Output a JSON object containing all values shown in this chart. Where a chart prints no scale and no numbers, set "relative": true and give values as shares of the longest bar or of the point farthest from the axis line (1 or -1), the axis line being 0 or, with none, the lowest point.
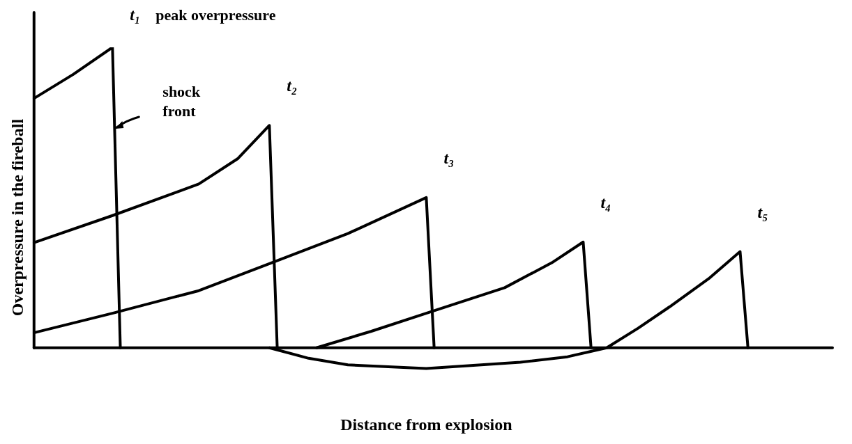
{
  "chart_data": {
    "type": "line",
    "xlabel": "Distance from explosion",
    "ylabel": "Overpressure in the fireball",
    "relative": true,
    "tick_labels": false,
    "marker": "none",
    "line_style": "solid",
    "categories": [
      null,
      null,
      null,
      null,
      null,
      null,
      null,
      null,
      null,
      null,
      null,
      null,
      null,
      null,
      null,
      null,
      null,
      null,
      null,
      null,
      null,
      null,
      null,
      null,
      null,
      null,
      null,
      null,
      null,
      null,
      null,
      null,
      null,
      null,
      null,
      null,
      null,
      null,
      null,
      null,
      null,
      null,
      null,
      null,
      null,
      null,
      null,
      null,
      null,
      null,
      null,
      null,
      null,
      null,
      null,
      null,
      null,
      null,
      null,
      null,
      null,
      null,
      null,
      null,
      null,
      null,
      null,
      null,
      null,
      null,
      null,
      null,
      null,
      null,
      null,
      null,
      null,
      null,
      null,
      null,
      null,
      null,
      null,
      null,
      null,
      null,
      null,
      null,
      null,
      null,
      null,
      null,
      null,
      null,
      null,
      null,
      null,
      null,
      null,
      null,
      null
    ],
    "series": [
      {
        "name": "t₁",
        "color": "#000000",
        "values": [
          0.83,
          null,
          null,
          null,
          null,
          0.91,
          null,
          null,
          null,
          null,
          1.0,
          0,
          null,
          null,
          null,
          null,
          null,
          null,
          null,
          null,
          null,
          null,
          null,
          null,
          null,
          null,
          null,
          null,
          null,
          null,
          null,
          null,
          null,
          null,
          null,
          null,
          null,
          null,
          null,
          null,
          null,
          null,
          null,
          null,
          null,
          null,
          null,
          null,
          null,
          null,
          null,
          null,
          null,
          null,
          null,
          null,
          null,
          null,
          null,
          null,
          null,
          null,
          null,
          null,
          null,
          null,
          null,
          null,
          null,
          null,
          null,
          null,
          null,
          null,
          null,
          null,
          null,
          null,
          null,
          null,
          null,
          null,
          null,
          null,
          null,
          null,
          null,
          null,
          null,
          null,
          null,
          null,
          null,
          null,
          null,
          null,
          null,
          null,
          null,
          null,
          null
        ]
      },
      {
        "name": "t₂",
        "color": "#000000",
        "values": [
          0.35,
          null,
          null,
          null,
          null,
          null,
          null,
          null,
          null,
          null,
          0.44,
          null,
          null,
          null,
          null,
          null,
          null,
          null,
          null,
          null,
          null,
          0.545,
          null,
          null,
          null,
          null,
          0.63,
          null,
          null,
          null,
          0.74,
          0,
          null,
          null,
          null,
          null,
          null,
          null,
          null,
          null,
          null,
          null,
          null,
          null,
          null,
          null,
          null,
          null,
          null,
          null,
          null,
          null,
          null,
          null,
          null,
          null,
          null,
          null,
          null,
          null,
          null,
          null,
          null,
          null,
          null,
          null,
          null,
          null,
          null,
          null,
          null,
          null,
          null,
          null,
          null,
          null,
          null,
          null,
          null,
          null,
          null,
          null,
          null,
          null,
          null,
          null,
          null,
          null,
          null,
          null,
          null,
          null,
          null,
          null,
          null,
          null,
          null,
          null,
          null,
          null,
          null
        ]
      },
      {
        "name": "t₃",
        "color": "#000000",
        "values": [
          0.05,
          null,
          null,
          null,
          null,
          null,
          null,
          null,
          null,
          null,
          0.115,
          null,
          null,
          null,
          null,
          null,
          null,
          null,
          null,
          null,
          null,
          0.19,
          null,
          null,
          null,
          null,
          null,
          null,
          null,
          null,
          0.28,
          null,
          null,
          null,
          null,
          null,
          null,
          null,
          null,
          null,
          0.38,
          null,
          null,
          null,
          null,
          null,
          null,
          null,
          null,
          null,
          0.5,
          0,
          null,
          null,
          null,
          null,
          null,
          null,
          null,
          null,
          null,
          null,
          null,
          null,
          null,
          null,
          null,
          null,
          null,
          null,
          null,
          null,
          null,
          null,
          null,
          null,
          null,
          null,
          null,
          null,
          null,
          null,
          null,
          null,
          null,
          null,
          null,
          null,
          null,
          null,
          null,
          null,
          null,
          null,
          null,
          null,
          null,
          null,
          null,
          null,
          null
        ]
      },
      {
        "name": "t₄",
        "color": "#000000",
        "values": [
          null,
          null,
          null,
          null,
          null,
          null,
          null,
          null,
          null,
          null,
          null,
          null,
          null,
          null,
          null,
          null,
          null,
          null,
          null,
          null,
          null,
          null,
          null,
          null,
          null,
          null,
          null,
          null,
          null,
          null,
          null,
          null,
          null,
          null,
          null,
          null,
          0,
          null,
          null,
          null,
          null,
          null,
          null,
          0.055,
          null,
          null,
          null,
          null,
          null,
          null,
          0.115,
          null,
          null,
          null,
          null,
          null,
          null,
          null,
          null,
          null,
          0.2,
          null,
          null,
          null,
          null,
          null,
          0.283,
          null,
          null,
          null,
          0.352,
          0,
          null,
          null,
          null,
          null,
          null,
          null,
          null,
          null,
          null,
          null,
          null,
          null,
          null,
          null,
          null,
          null,
          null,
          null,
          null,
          null,
          null,
          null,
          null,
          null,
          null,
          null,
          null,
          null,
          null
        ]
      },
      {
        "name": "t₅",
        "color": "#000000",
        "values": [
          null,
          null,
          null,
          null,
          null,
          null,
          null,
          null,
          null,
          null,
          null,
          null,
          null,
          null,
          null,
          null,
          null,
          null,
          null,
          null,
          null,
          null,
          null,
          null,
          null,
          null,
          null,
          null,
          null,
          null,
          0,
          null,
          null,
          null,
          null,
          -0.035,
          null,
          null,
          null,
          null,
          -0.057,
          null,
          null,
          null,
          null,
          null,
          null,
          null,
          null,
          null,
          -0.069,
          null,
          null,
          null,
          null,
          null,
          null,
          null,
          null,
          null,
          null,
          null,
          -0.048,
          null,
          null,
          null,
          null,
          null,
          -0.03,
          null,
          null,
          null,
          null,
          0,
          null,
          null,
          null,
          0.065,
          null,
          null,
          null,
          0.136,
          null,
          null,
          null,
          null,
          0.23,
          null,
          null,
          null,
          0.32,
          0,
          null,
          null,
          null,
          null,
          null,
          null,
          null,
          null,
          null
        ]
      }
    ],
    "annotations": [
      "peak overpressure",
      "shock\nfront"
    ]
  }
}
